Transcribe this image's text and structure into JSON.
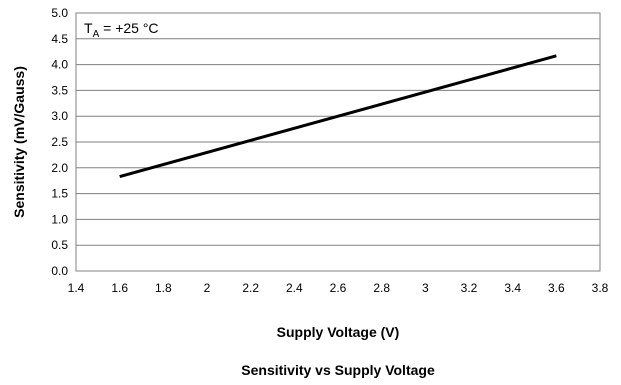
{
  "chart_data": {
    "type": "line",
    "title": "Sensitivity vs Supply Voltage",
    "xlabel": "Supply Voltage (V)",
    "ylabel": "Sensitivity (mV/Gauss)",
    "annotation": {
      "prefix": "T",
      "subscript": "A",
      "suffix": " = +25 °C"
    },
    "xlim": [
      1.4,
      3.8
    ],
    "ylim": [
      0.0,
      5.0
    ],
    "x_ticks": [
      1.4,
      1.6,
      1.8,
      2.0,
      2.2,
      2.4,
      2.6,
      2.8,
      3.0,
      3.2,
      3.4,
      3.6,
      3.8
    ],
    "x_tick_labels": [
      "1.4",
      "1.6",
      "1.8",
      "2",
      "2.2",
      "2.4",
      "2.6",
      "2.8",
      "3",
      "3.2",
      "3.4",
      "3.6",
      "3.8"
    ],
    "y_ticks": [
      0.0,
      0.5,
      1.0,
      1.5,
      2.0,
      2.5,
      3.0,
      3.5,
      4.0,
      4.5,
      5.0
    ],
    "y_tick_labels": [
      "0.0",
      "0.5",
      "1.0",
      "1.5",
      "2.0",
      "2.5",
      "3.0",
      "3.5",
      "4.0",
      "4.5",
      "5.0"
    ],
    "grid": true,
    "legend": "none",
    "series": [
      {
        "x": [
          1.6,
          3.6
        ],
        "values": [
          1.83,
          4.17
        ],
        "color": "#000000"
      }
    ]
  }
}
